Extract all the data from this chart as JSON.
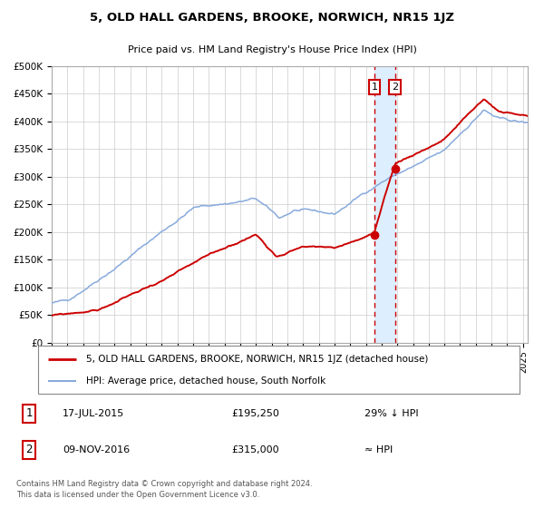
{
  "title": "5, OLD HALL GARDENS, BROOKE, NORWICH, NR15 1JZ",
  "subtitle": "Price paid vs. HM Land Registry's House Price Index (HPI)",
  "ylim": [
    0,
    500000
  ],
  "yticks": [
    0,
    50000,
    100000,
    150000,
    200000,
    250000,
    300000,
    350000,
    400000,
    450000,
    500000
  ],
  "xlim_start": 1995.0,
  "xlim_end": 2025.3,
  "sale1_date": 2015.54,
  "sale1_price": 195250,
  "sale2_date": 2016.86,
  "sale2_price": 315000,
  "sale1_label": "17-JUL-2015",
  "sale1_amount": "£195,250",
  "sale1_note": "29% ↓ HPI",
  "sale2_label": "09-NOV-2016",
  "sale2_amount": "£315,000",
  "sale2_note": "≈ HPI",
  "legend_line1": "5, OLD HALL GARDENS, BROOKE, NORWICH, NR15 1JZ (detached house)",
  "legend_line2": "HPI: Average price, detached house, South Norfolk",
  "footer": "Contains HM Land Registry data © Crown copyright and database right 2024.\nThis data is licensed under the Open Government Licence v3.0.",
  "price_color": "#cc0000",
  "hpi_color": "#88aadd",
  "dot_color": "#cc0000",
  "shade_color": "#ddeeff",
  "dashed_color": "#cc0000",
  "background_color": "#ffffff",
  "grid_color": "#cccccc",
  "title_fontsize": 9.5,
  "subtitle_fontsize": 8,
  "tick_fontsize": 7,
  "legend_fontsize": 7.5,
  "table_fontsize": 8,
  "footer_fontsize": 6
}
